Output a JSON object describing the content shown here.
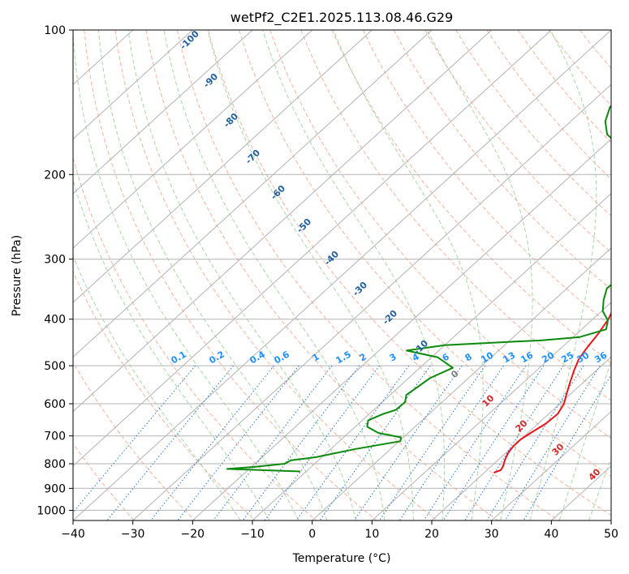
{
  "chart_data": {
    "type": "line",
    "subtype": "skew-t log-p sounding",
    "title": "wetPf2_C2E1.2025.113.08.46.G29",
    "xlabel": "Temperature (°C)",
    "ylabel": "Pressure (hPa)",
    "xlim": [
      -40,
      50
    ],
    "ylim": [
      1050,
      100
    ],
    "y_scale": "log",
    "grid": true,
    "x_ticks": [
      "−40",
      "−30",
      "−20",
      "−10",
      "0",
      "10",
      "20",
      "30",
      "40",
      "50"
    ],
    "y_ticks": [
      "100",
      "200",
      "300",
      "400",
      "500",
      "600",
      "700",
      "800",
      "900",
      "1000"
    ],
    "x_tick_values": [
      -40,
      -30,
      -20,
      -10,
      0,
      10,
      20,
      30,
      40,
      50
    ],
    "y_tick_values": [
      100,
      200,
      300,
      400,
      500,
      600,
      700,
      800,
      900,
      1000
    ],
    "series": [
      {
        "role": "temperature",
        "color": "#e8161b",
        "points": [
          [
            835,
            21.6
          ],
          [
            825,
            22.3
          ],
          [
            810,
            22.0
          ],
          [
            785,
            21.1
          ],
          [
            760,
            20.4
          ],
          [
            735,
            20.0
          ],
          [
            712,
            20.0
          ],
          [
            685,
            20.6
          ],
          [
            660,
            21.3
          ],
          [
            630,
            21.5
          ],
          [
            600,
            20.7
          ],
          [
            570,
            19.2
          ],
          [
            540,
            17.7
          ],
          [
            510,
            16.2
          ],
          [
            485,
            15.0
          ],
          [
            460,
            14.3
          ],
          [
            430,
            13.6
          ],
          [
            400,
            12.6
          ],
          [
            375,
            11.2
          ],
          [
            350,
            9.7
          ],
          [
            325,
            8.3
          ],
          [
            300,
            7.0
          ],
          [
            278,
            5.4
          ],
          [
            255,
            3.8
          ],
          [
            235,
            2.3
          ],
          [
            218,
            1.0
          ],
          [
            205,
            0.2
          ],
          [
            199,
            -0.3
          ],
          [
            193,
            0.1
          ],
          [
            185,
            1.1
          ],
          [
            175,
            2.5
          ],
          [
            160,
            3.9
          ],
          [
            145,
            4.6
          ],
          [
            130,
            4.7
          ],
          [
            115,
            4.8
          ],
          [
            105,
            5.7
          ],
          [
            100,
            6.7
          ]
        ]
      },
      {
        "role": "dewpoint",
        "color": "#0b8a0b",
        "points": [
          [
            830,
            -11.0
          ],
          [
            820,
            -23.7
          ],
          [
            812,
            -19.5
          ],
          [
            800,
            -15.0
          ],
          [
            787,
            -14.6
          ],
          [
            775,
            -11.0
          ],
          [
            745,
            -5.8
          ],
          [
            718,
            0.2
          ],
          [
            705,
            -0.4
          ],
          [
            690,
            -5.0
          ],
          [
            670,
            -8.0
          ],
          [
            650,
            -9.0
          ],
          [
            630,
            -7.7
          ],
          [
            618,
            -6.3
          ],
          [
            595,
            -6.2
          ],
          [
            575,
            -7.3
          ],
          [
            555,
            -6.9
          ],
          [
            530,
            -6.4
          ],
          [
            505,
            -4.5
          ],
          [
            480,
            -9.0
          ],
          [
            465,
            -15.4
          ],
          [
            453,
            -10.0
          ],
          [
            446,
            0.0
          ],
          [
            443,
            5.0
          ],
          [
            436,
            11.0
          ],
          [
            420,
            14.1
          ],
          [
            402,
            12.7
          ],
          [
            385,
            10.2
          ],
          [
            365,
            8.3
          ],
          [
            345,
            6.7
          ],
          [
            325,
            6.9
          ],
          [
            300,
            5.5
          ],
          [
            278,
            3.3
          ],
          [
            255,
            1.4
          ],
          [
            235,
            -0.5
          ],
          [
            215,
            -2.5
          ],
          [
            203,
            -3.2
          ],
          [
            196,
            -3.6
          ],
          [
            190,
            -6.0
          ],
          [
            183,
            -11.0
          ],
          [
            175,
            -17.0
          ],
          [
            165,
            -21.5
          ],
          [
            155,
            -24.2
          ],
          [
            145,
            -26.0
          ],
          [
            135,
            -26.8
          ],
          [
            125,
            -26.4
          ],
          [
            115,
            -24.2
          ],
          [
            105,
            -20.0
          ],
          [
            100,
            -17.6
          ]
        ]
      }
    ],
    "dry_adiabat_labels": [
      "-100",
      "-90",
      "-80",
      "-70",
      "-60",
      "-50",
      "-40",
      "-30",
      "-20",
      "-10"
    ],
    "mixing_ratio_labels": [
      "0.1",
      "0.2",
      "0.4",
      "0.6",
      "1",
      "1.5",
      "2",
      "3",
      "4",
      "6",
      "8",
      "10",
      "13",
      "16",
      "20",
      "25",
      "30",
      "36"
    ],
    "moist_adiabat_labels": [
      "0",
      "10",
      "20",
      "30",
      "40"
    ],
    "colors": {
      "isotherm": "#b3b3b3",
      "isobar": "#b3b3b3",
      "dry_adiabat": "#f7a589",
      "moist_adiabat": "#9fd39f",
      "mixing_ratio": "#1f77d4",
      "dry_adiabat_label": "#1f5f9e",
      "mixing_ratio_label": "#1e90ff",
      "moist_adiabat_label": "#d62728",
      "moist_adiabat_label_zero": "#808080",
      "reference": "#d9b38c"
    }
  }
}
